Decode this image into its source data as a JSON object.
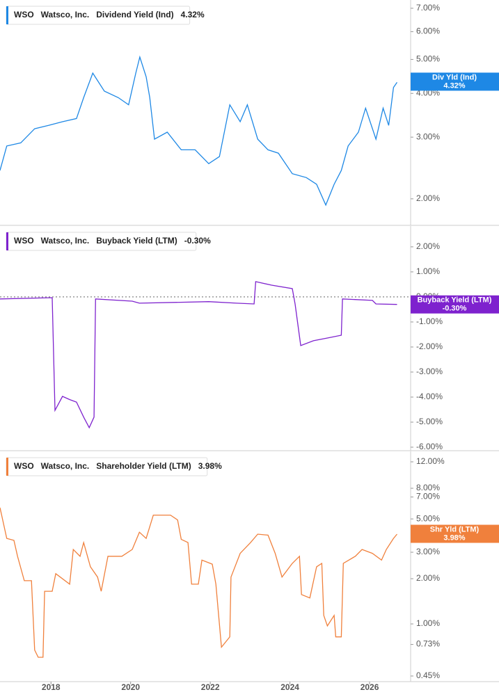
{
  "chart_data": [
    {
      "type": "line",
      "ticker": "WSO",
      "company": "Watsco, Inc.",
      "badge": "Div Yld (Ind)",
      "current": {
        "value": 4.32,
        "label": "4.32%"
      },
      "log": true,
      "xlim": [
        2016.72,
        2027.03
      ],
      "ylim": [
        1.68,
        7.39
      ],
      "yticks": [
        {
          "value": 2,
          "label": "2.00%"
        },
        {
          "value": 3,
          "label": "3.00%"
        },
        {
          "value": 4,
          "label": "4.00%"
        },
        {
          "value": 5,
          "label": "5.00%"
        },
        {
          "value": 6,
          "label": "6.00%"
        },
        {
          "value": 7,
          "label": "7.00%"
        }
      ],
      "x": [
        2016.72,
        2016.89,
        2017.24,
        2017.59,
        2017.94,
        2018.29,
        2018.64,
        2018.82,
        2019.05,
        2019.34,
        2019.69,
        2019.95,
        2020.13,
        2020.23,
        2020.39,
        2020.48,
        2020.6,
        2020.92,
        2021.27,
        2021.62,
        2021.96,
        2022.23,
        2022.49,
        2022.75,
        2022.93,
        2023.19,
        2023.45,
        2023.71,
        2024.06,
        2024.41,
        2024.67,
        2024.9,
        2025.11,
        2025.29,
        2025.46,
        2025.72,
        2025.9,
        2026.16,
        2026.34,
        2026.48,
        2026.6,
        2026.69
      ],
      "series": [
        {
          "name": "Dividend Yield (Ind)",
          "color": "#1e88e5",
          "values": [
            2.41,
            2.83,
            2.89,
            3.17,
            3.24,
            3.32,
            3.39,
            3.89,
            4.57,
            4.06,
            3.89,
            3.71,
            4.57,
            5.08,
            4.46,
            3.89,
            2.96,
            3.1,
            2.76,
            2.76,
            2.52,
            2.64,
            3.71,
            3.32,
            3.71,
            2.96,
            2.76,
            2.7,
            2.36,
            2.3,
            2.2,
            1.92,
            2.2,
            2.41,
            2.83,
            3.1,
            3.63,
            2.96,
            3.63,
            3.24,
            4.16,
            4.3
          ]
        }
      ]
    },
    {
      "type": "line",
      "ticker": "WSO",
      "company": "Watsco, Inc.",
      "badge": "Buyback Yield (LTM)",
      "current": {
        "value": -0.3,
        "label": "-0.30%"
      },
      "log": false,
      "zero_line": true,
      "xlim": [
        2016.72,
        2027.03
      ],
      "ylim": [
        -6.14,
        2.83
      ],
      "yticks": [
        {
          "value": 2,
          "label": "2.00%"
        },
        {
          "value": 1,
          "label": "1.00%"
        },
        {
          "value": 0,
          "label": "0.00%"
        },
        {
          "value": -1,
          "label": "-1.00%"
        },
        {
          "value": -2,
          "label": "-2.00%"
        },
        {
          "value": -3,
          "label": "-3.00%"
        },
        {
          "value": -4,
          "label": "-4.00%"
        },
        {
          "value": -5,
          "label": "-5.00%"
        },
        {
          "value": -6,
          "label": "-6.00%"
        }
      ],
      "x": [
        2016.72,
        2018.03,
        2018.1,
        2018.29,
        2018.47,
        2018.64,
        2018.82,
        2018.96,
        2019.08,
        2019.12,
        2020.04,
        2020.22,
        2021.96,
        2022.66,
        2023.1,
        2023.14,
        2023.54,
        2024.06,
        2024.13,
        2024.27,
        2024.59,
        2024.94,
        2025.29,
        2025.32,
        2026.07,
        2026.16,
        2026.69
      ],
      "series": [
        {
          "name": "Buyback Yield (LTM)",
          "color": "#7e22ce",
          "values": [
            -0.08,
            -0.03,
            -4.53,
            -3.97,
            -4.1,
            -4.2,
            -4.8,
            -5.22,
            -4.8,
            -0.08,
            -0.17,
            -0.25,
            -0.19,
            -0.25,
            -0.28,
            0.61,
            0.47,
            0.33,
            -0.28,
            -1.94,
            -1.75,
            -1.64,
            -1.53,
            -0.08,
            -0.14,
            -0.28,
            -0.3
          ]
        }
      ]
    },
    {
      "type": "line",
      "ticker": "WSO",
      "company": "Watsco, Inc.",
      "badge": "Shr Yld (LTM)",
      "current": {
        "value": 3.98,
        "label": "3.98%"
      },
      "log": true,
      "xlim": [
        2016.72,
        2027.03
      ],
      "ylim": [
        0.413,
        14.08
      ],
      "xticks": [
        2018,
        2020,
        2022,
        2024,
        2026
      ],
      "yticks": [
        {
          "value": 0.45,
          "label": "0.45%"
        },
        {
          "value": 0.73,
          "label": "0.73%"
        },
        {
          "value": 1,
          "label": "1.00%"
        },
        {
          "value": 2,
          "label": "2.00%"
        },
        {
          "value": 3,
          "label": "3.00%"
        },
        {
          "value": 5,
          "label": "5.00%"
        },
        {
          "value": 7,
          "label": "7.00%"
        },
        {
          "value": 8,
          "label": "8.00%"
        },
        {
          "value": 12,
          "label": "12.00%"
        }
      ],
      "x": [
        2016.72,
        2016.89,
        2017.07,
        2017.16,
        2017.33,
        2017.51,
        2017.59,
        2017.68,
        2017.8,
        2017.84,
        2018.03,
        2018.12,
        2018.47,
        2018.56,
        2018.73,
        2018.82,
        2018.99,
        2019.17,
        2019.26,
        2019.43,
        2019.78,
        2020.04,
        2020.22,
        2020.39,
        2020.57,
        2021.0,
        2021.18,
        2021.27,
        2021.44,
        2021.53,
        2021.7,
        2021.79,
        2022.05,
        2022.14,
        2022.28,
        2022.49,
        2022.52,
        2022.75,
        2023.01,
        2023.19,
        2023.45,
        2023.63,
        2023.8,
        2024.06,
        2024.24,
        2024.29,
        2024.5,
        2024.67,
        2024.8,
        2024.85,
        2024.94,
        2025.11,
        2025.15,
        2025.29,
        2025.34,
        2025.64,
        2025.81,
        2026.07,
        2026.3,
        2026.42,
        2026.6,
        2026.69
      ],
      "series": [
        {
          "name": "Shareholder Yield (LTM)",
          "color": "#f0803c",
          "values": [
            5.94,
            3.71,
            3.6,
            2.82,
            1.94,
            1.94,
            0.67,
            0.6,
            0.6,
            1.65,
            1.65,
            2.16,
            1.84,
            3.13,
            2.82,
            3.48,
            2.4,
            2.05,
            1.65,
            2.82,
            2.82,
            3.13,
            4.08,
            3.71,
            5.3,
            5.3,
            4.92,
            3.66,
            3.48,
            1.84,
            1.84,
            2.66,
            2.5,
            1.84,
            0.7,
            0.82,
            2.05,
            2.95,
            3.48,
            3.96,
            3.9,
            2.95,
            2.05,
            2.53,
            2.82,
            1.57,
            1.49,
            2.4,
            2.53,
            1.14,
            0.97,
            1.14,
            0.82,
            0.82,
            2.53,
            2.82,
            3.13,
            2.95,
            2.66,
            3.13,
            3.71,
            3.96
          ]
        }
      ]
    }
  ]
}
